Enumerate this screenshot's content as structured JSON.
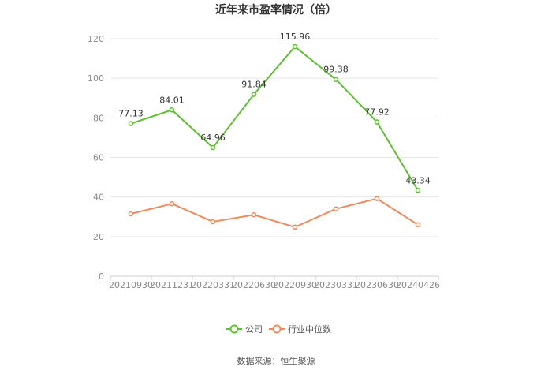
{
  "title": "近年来市盈率情况（倍）",
  "source": "数据来源：恒生聚源",
  "colors": {
    "company": "#5cc12e",
    "industry": "#f08a5d",
    "grid": "#e6e6e6",
    "axis": "#cccccc"
  },
  "chart_data": {
    "type": "line",
    "title": "近年来市盈率情况（倍）",
    "categories": [
      "20210930",
      "20211231",
      "20220331",
      "20220630",
      "20220930",
      "20230331",
      "20230630",
      "20240426"
    ],
    "ylim": [
      0,
      120
    ],
    "yticks": [
      0,
      20,
      40,
      60,
      80,
      100,
      120
    ],
    "ytick_labels": [
      "0",
      "20",
      "40",
      "60",
      "80",
      "100",
      "120"
    ],
    "grid": true,
    "legend": "bottom-center",
    "series": [
      {
        "name": "公司",
        "values": [
          77.13,
          84.01,
          64.96,
          91.84,
          115.96,
          99.38,
          77.92,
          43.34
        ],
        "labels": [
          "77.13",
          "84.01",
          "64.96",
          "91.84",
          "115.96",
          "99.38",
          "77.92",
          "43.34"
        ]
      },
      {
        "name": "行业中位数",
        "values": [
          31.5,
          36.6,
          27.5,
          31.0,
          24.8,
          34.0,
          39.2,
          26.0
        ]
      }
    ]
  }
}
